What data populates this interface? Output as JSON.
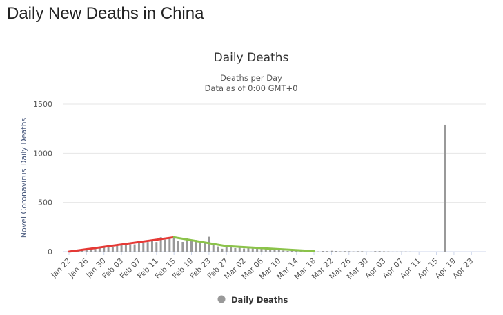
{
  "page_title": "Daily New Deaths in China",
  "chart_data": {
    "type": "bar",
    "title": "Daily Deaths",
    "subtitle_line1": "Deaths per Day",
    "subtitle_line2": "Data as of 0:00 GMT+0",
    "ylabel": "Novel Coronavirus Daily Deaths",
    "ylim": [
      0,
      1500
    ],
    "yticks": [
      "0",
      "500",
      "1000",
      "1500"
    ],
    "start_date": "Jan 22",
    "xtick_labels": [
      "Jan 22",
      "Jan 26",
      "Jan 30",
      "Feb 03",
      "Feb 07",
      "Feb 11",
      "Feb 15",
      "Feb 19",
      "Feb 23",
      "Feb 27",
      "Mar 02",
      "Mar 06",
      "Mar 10",
      "Mar 14",
      "Mar 18",
      "Mar 22",
      "Mar 26",
      "Mar 30",
      "Apr 03",
      "Apr 07",
      "Apr 11",
      "Apr 15",
      "Apr 19",
      "Apr 23"
    ],
    "legend": "Daily Deaths",
    "bar_color": "#999999",
    "values": [
      0,
      8,
      16,
      15,
      24,
      26,
      26,
      38,
      43,
      46,
      45,
      57,
      64,
      66,
      73,
      73,
      86,
      89,
      97,
      108,
      97,
      146,
      121,
      143,
      142,
      105,
      98,
      136,
      114,
      118,
      109,
      97,
      150,
      71,
      52,
      29,
      44,
      47,
      35,
      42,
      31,
      38,
      31,
      30,
      28,
      27,
      22,
      17,
      22,
      11,
      7,
      13,
      10,
      14,
      13,
      11,
      8,
      3,
      7,
      6,
      9,
      7,
      4,
      6,
      5,
      3,
      5,
      5,
      1,
      1,
      6,
      6,
      4,
      3,
      1,
      1,
      2,
      2,
      1,
      0,
      0,
      0,
      0,
      0,
      0,
      0,
      1290,
      0,
      0,
      0,
      0,
      0,
      0,
      0
    ],
    "trend_lines": [
      {
        "color": "#e53935",
        "points": [
          [
            0,
            0
          ],
          [
            24,
            145
          ]
        ]
      },
      {
        "color": "#8bc34a",
        "points": [
          [
            24,
            145
          ],
          [
            36,
            55
          ],
          [
            56,
            5
          ]
        ]
      }
    ]
  }
}
